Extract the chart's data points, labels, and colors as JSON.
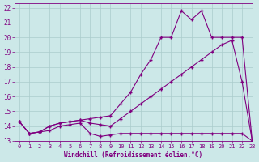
{
  "xlabel": "Windchill (Refroidissement éolien,°C)",
  "xlim": [
    -0.5,
    23
  ],
  "ylim": [
    13,
    22.3
  ],
  "xticks": [
    0,
    1,
    2,
    3,
    4,
    5,
    6,
    7,
    8,
    9,
    10,
    11,
    12,
    13,
    14,
    15,
    16,
    17,
    18,
    19,
    20,
    21,
    22,
    23
  ],
  "yticks": [
    13,
    14,
    15,
    16,
    17,
    18,
    19,
    20,
    21,
    22
  ],
  "bg_color": "#cce8e8",
  "line_color": "#800080",
  "grid_color": "#aacccc",
  "line1_x": [
    0,
    1,
    2,
    3,
    4,
    5,
    6,
    7,
    8,
    9,
    10,
    11,
    12,
    13,
    14,
    15,
    16,
    17,
    18,
    19,
    20,
    21,
    22,
    23
  ],
  "line1_y": [
    14.3,
    13.5,
    13.6,
    13.7,
    14.0,
    14.1,
    14.2,
    13.5,
    13.3,
    13.4,
    13.5,
    13.5,
    13.5,
    13.5,
    13.5,
    13.5,
    13.5,
    13.5,
    13.5,
    13.5,
    13.5,
    13.5,
    13.5,
    13.0
  ],
  "line2_x": [
    0,
    1,
    2,
    3,
    4,
    5,
    6,
    7,
    8,
    9,
    10,
    11,
    12,
    13,
    14,
    15,
    16,
    17,
    18,
    19,
    20,
    21,
    22,
    23
  ],
  "line2_y": [
    14.3,
    13.5,
    13.6,
    14.0,
    14.2,
    14.3,
    14.4,
    14.5,
    14.6,
    14.7,
    15.5,
    16.3,
    17.5,
    18.5,
    20.0,
    20.0,
    21.8,
    21.2,
    21.8,
    20.0,
    20.0,
    20.0,
    20.0,
    13.0
  ],
  "line3_x": [
    0,
    1,
    2,
    3,
    4,
    5,
    6,
    7,
    8,
    9,
    10,
    11,
    12,
    13,
    14,
    15,
    16,
    17,
    18,
    19,
    20,
    21,
    22,
    23
  ],
  "line3_y": [
    14.3,
    13.5,
    13.6,
    14.0,
    14.2,
    14.3,
    14.4,
    14.2,
    14.1,
    14.0,
    14.5,
    15.0,
    15.5,
    16.0,
    16.5,
    17.0,
    17.5,
    18.0,
    18.5,
    19.0,
    19.5,
    19.8,
    17.0,
    13.0
  ],
  "marker": "+",
  "markersize": 3.5,
  "linewidth": 0.8
}
